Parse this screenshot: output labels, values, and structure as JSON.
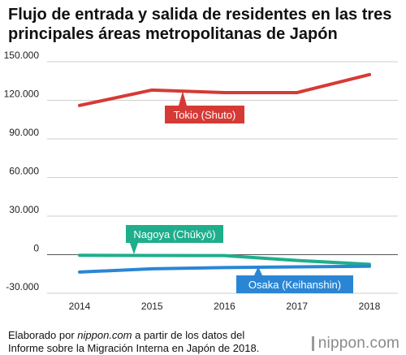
{
  "chart_data": {
    "type": "line",
    "title": "Flujo de entrada y salida de residentes en las tres principales áreas metropolitanas de Japón",
    "xlabel": "",
    "ylabel": "",
    "categories": [
      "2014",
      "2015",
      "2016",
      "2017",
      "2018"
    ],
    "ylim": [
      -30000,
      150000
    ],
    "yticks": [
      -30000,
      0,
      30000,
      60000,
      90000,
      120000,
      150000
    ],
    "ytick_labels": [
      "-30.000",
      "0",
      "30.000",
      "60.000",
      "90.000",
      "120.000",
      "150.000"
    ],
    "grid": true,
    "series": [
      {
        "name": "Tokio (Shuto)",
        "color": "#d63a35",
        "values": [
          116000,
          128000,
          126000,
          126000,
          140000
        ]
      },
      {
        "name": "Nagoya (Chūkyō)",
        "color": "#1fae8c",
        "values": [
          -500,
          -600,
          -700,
          -4500,
          -7500
        ]
      },
      {
        "name": "Osaka (Keihanshin)",
        "color": "#2a86d4",
        "values": [
          -13500,
          -11000,
          -10000,
          -9500,
          -9000
        ]
      }
    ]
  },
  "footer": {
    "prefix": "Elaborado por ",
    "source": "nippon.com",
    "suffix": " a partir de los datos del Informe sobre la Migración Interna en Japón de 2018."
  },
  "brand": {
    "name": "nippon.com"
  }
}
